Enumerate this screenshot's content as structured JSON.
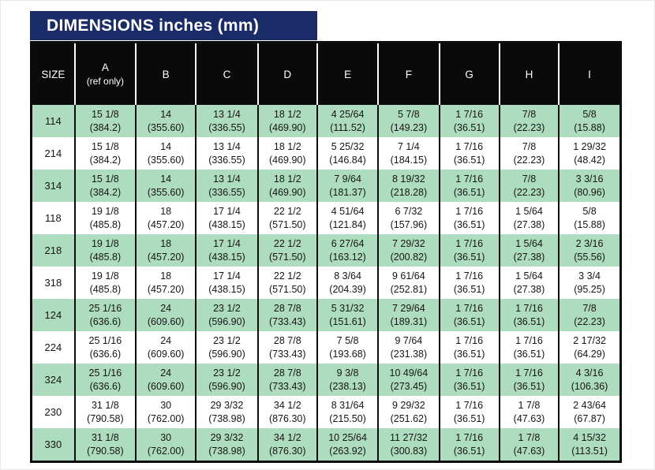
{
  "title_bar": {
    "text": "DIMENSIONS inches (mm)"
  },
  "colors": {
    "title_bg": "#1a2c68",
    "title_fg": "#ffffff",
    "table_header_bg": "#0a0a0a",
    "table_header_fg": "#ffffff",
    "stripe_green": "#aedcbf",
    "stripe_white": "#ffffff",
    "border": "#0d0d0d"
  },
  "table": {
    "columns": [
      {
        "label": "SIZE",
        "sub": ""
      },
      {
        "label": "A",
        "sub": "(ref only)"
      },
      {
        "label": "B",
        "sub": ""
      },
      {
        "label": "C",
        "sub": ""
      },
      {
        "label": "D",
        "sub": ""
      },
      {
        "label": "E",
        "sub": ""
      },
      {
        "label": "F",
        "sub": ""
      },
      {
        "label": "G",
        "sub": ""
      },
      {
        "label": "H",
        "sub": ""
      },
      {
        "label": "I",
        "sub": ""
      }
    ],
    "rows": [
      {
        "size": "114",
        "stripe": "green",
        "values": [
          {
            "in": "15 1/8",
            "mm": "(384.2)"
          },
          {
            "in": "14",
            "mm": "(355.60)"
          },
          {
            "in": "13 1/4",
            "mm": "(336.55)"
          },
          {
            "in": "18 1/2",
            "mm": "(469.90)"
          },
          {
            "in": "4 25/64",
            "mm": "(111.52)"
          },
          {
            "in": "5 7/8",
            "mm": "(149.23)"
          },
          {
            "in": "1 7/16",
            "mm": "(36.51)"
          },
          {
            "in": "7/8",
            "mm": "(22.23)"
          },
          {
            "in": "5/8",
            "mm": "(15.88)"
          }
        ]
      },
      {
        "size": "214",
        "stripe": "white",
        "values": [
          {
            "in": "15 1/8",
            "mm": "(384.2)"
          },
          {
            "in": "14",
            "mm": "(355.60)"
          },
          {
            "in": "13 1/4",
            "mm": "(336.55)"
          },
          {
            "in": "18 1/2",
            "mm": "(469.90)"
          },
          {
            "in": "5 25/32",
            "mm": "(146.84)"
          },
          {
            "in": "7 1/4",
            "mm": "(184.15)"
          },
          {
            "in": "1 7/16",
            "mm": "(36.51)"
          },
          {
            "in": "7/8",
            "mm": "(22.23)"
          },
          {
            "in": "1 29/32",
            "mm": "(48.42)"
          }
        ]
      },
      {
        "size": "314",
        "stripe": "green",
        "values": [
          {
            "in": "15 1/8",
            "mm": "(384.2)"
          },
          {
            "in": "14",
            "mm": "(355.60)"
          },
          {
            "in": "13 1/4",
            "mm": "(336.55)"
          },
          {
            "in": "18 1/2",
            "mm": "(469.90)"
          },
          {
            "in": "7 9/64",
            "mm": "(181.37)"
          },
          {
            "in": "8 19/32",
            "mm": "(218.28)"
          },
          {
            "in": "1 7/16",
            "mm": "(36.51)"
          },
          {
            "in": "7/8",
            "mm": "(22.23)"
          },
          {
            "in": "3 3/16",
            "mm": "(80.96)"
          }
        ]
      },
      {
        "size": "118",
        "stripe": "white",
        "values": [
          {
            "in": "19 1/8",
            "mm": "(485.8)"
          },
          {
            "in": "18",
            "mm": "(457.20)"
          },
          {
            "in": "17 1/4",
            "mm": "(438.15)"
          },
          {
            "in": "22 1/2",
            "mm": "(571.50)"
          },
          {
            "in": "4 51/64",
            "mm": "(121.84)"
          },
          {
            "in": "6 7/32",
            "mm": "(157.96)"
          },
          {
            "in": "1 7/16",
            "mm": "(36.51)"
          },
          {
            "in": "1 5/64",
            "mm": "(27.38)"
          },
          {
            "in": "5/8",
            "mm": "(15.88)"
          }
        ]
      },
      {
        "size": "218",
        "stripe": "green",
        "values": [
          {
            "in": "19 1/8",
            "mm": "(485.8)"
          },
          {
            "in": "18",
            "mm": "(457.20)"
          },
          {
            "in": "17 1/4",
            "mm": "(438.15)"
          },
          {
            "in": "22 1/2",
            "mm": "(571.50)"
          },
          {
            "in": "6 27/64",
            "mm": "(163.12)"
          },
          {
            "in": "7 29/32",
            "mm": "(200.82)"
          },
          {
            "in": "1 7/16",
            "mm": "(36.51)"
          },
          {
            "in": "1 5/64",
            "mm": "(27.38)"
          },
          {
            "in": "2 3/16",
            "mm": "(55.56)"
          }
        ]
      },
      {
        "size": "318",
        "stripe": "white",
        "values": [
          {
            "in": "19 1/8",
            "mm": "(485.8)"
          },
          {
            "in": "18",
            "mm": "(457.20)"
          },
          {
            "in": "17 1/4",
            "mm": "(438.15)"
          },
          {
            "in": "22 1/2",
            "mm": "(571.50)"
          },
          {
            "in": "8 3/64",
            "mm": "(204.39)"
          },
          {
            "in": "9 61/64",
            "mm": "(252.81)"
          },
          {
            "in": "1 7/16",
            "mm": "(36.51)"
          },
          {
            "in": "1 5/64",
            "mm": "(27.38)"
          },
          {
            "in": "3 3/4",
            "mm": "(95.25)"
          }
        ]
      },
      {
        "size": "124",
        "stripe": "green",
        "values": [
          {
            "in": "25 1/16",
            "mm": "(636.6)"
          },
          {
            "in": "24",
            "mm": "(609.60)"
          },
          {
            "in": "23 1/2",
            "mm": "(596.90)"
          },
          {
            "in": "28 7/8",
            "mm": "(733.43)"
          },
          {
            "in": "5 31/32",
            "mm": "(151.61)"
          },
          {
            "in": "7 29/64",
            "mm": "(189.31)"
          },
          {
            "in": "1 7/16",
            "mm": "(36.51)"
          },
          {
            "in": "1 7/16",
            "mm": "(36.51)"
          },
          {
            "in": "7/8",
            "mm": "(22.23)"
          }
        ]
      },
      {
        "size": "224",
        "stripe": "white",
        "values": [
          {
            "in": "25 1/16",
            "mm": "(636.6)"
          },
          {
            "in": "24",
            "mm": "(609.60)"
          },
          {
            "in": "23 1/2",
            "mm": "(596.90)"
          },
          {
            "in": "28 7/8",
            "mm": "(733.43)"
          },
          {
            "in": "7 5/8",
            "mm": "(193.68)"
          },
          {
            "in": "9 7/64",
            "mm": "(231.38)"
          },
          {
            "in": "1 7/16",
            "mm": "(36.51)"
          },
          {
            "in": "1 7/16",
            "mm": "(36.51)"
          },
          {
            "in": "2 17/32",
            "mm": "(64.29)"
          }
        ]
      },
      {
        "size": "324",
        "stripe": "green",
        "values": [
          {
            "in": "25 1/16",
            "mm": "(636.6)"
          },
          {
            "in": "24",
            "mm": "(609.60)"
          },
          {
            "in": "23 1/2",
            "mm": "(596.90)"
          },
          {
            "in": "28 7/8",
            "mm": "(733.43)"
          },
          {
            "in": "9 3/8",
            "mm": "(238.13)"
          },
          {
            "in": "10 49/64",
            "mm": "(273.45)"
          },
          {
            "in": "1 7/16",
            "mm": "(36.51)"
          },
          {
            "in": "1 7/16",
            "mm": "(36.51)"
          },
          {
            "in": "4 3/16",
            "mm": "(106.36)"
          }
        ]
      },
      {
        "size": "230",
        "stripe": "white",
        "values": [
          {
            "in": "31 1/8",
            "mm": "(790.58)"
          },
          {
            "in": "30",
            "mm": "(762.00)"
          },
          {
            "in": "29 3/32",
            "mm": "(738.98)"
          },
          {
            "in": "34 1/2",
            "mm": "(876.30)"
          },
          {
            "in": "8 31/64",
            "mm": "(215.50)"
          },
          {
            "in": "9 29/32",
            "mm": "(251.62)"
          },
          {
            "in": "1 7/16",
            "mm": "(36.51)"
          },
          {
            "in": "1 7/8",
            "mm": "(47.63)"
          },
          {
            "in": "2 43/64",
            "mm": "(67.87)"
          }
        ]
      },
      {
        "size": "330",
        "stripe": "green",
        "values": [
          {
            "in": "31 1/8",
            "mm": "(790.58)"
          },
          {
            "in": "30",
            "mm": "(762.00)"
          },
          {
            "in": "29 3/32",
            "mm": "(738.98)"
          },
          {
            "in": "34 1/2",
            "mm": "(876.30)"
          },
          {
            "in": "10 25/64",
            "mm": "(263.92)"
          },
          {
            "in": "11 27/32",
            "mm": "(300.83)"
          },
          {
            "in": "1 7/16",
            "mm": "(36.51)"
          },
          {
            "in": "1 7/8",
            "mm": "(47.63)"
          },
          {
            "in": "4 15/32",
            "mm": "(113.51)"
          }
        ]
      }
    ]
  }
}
